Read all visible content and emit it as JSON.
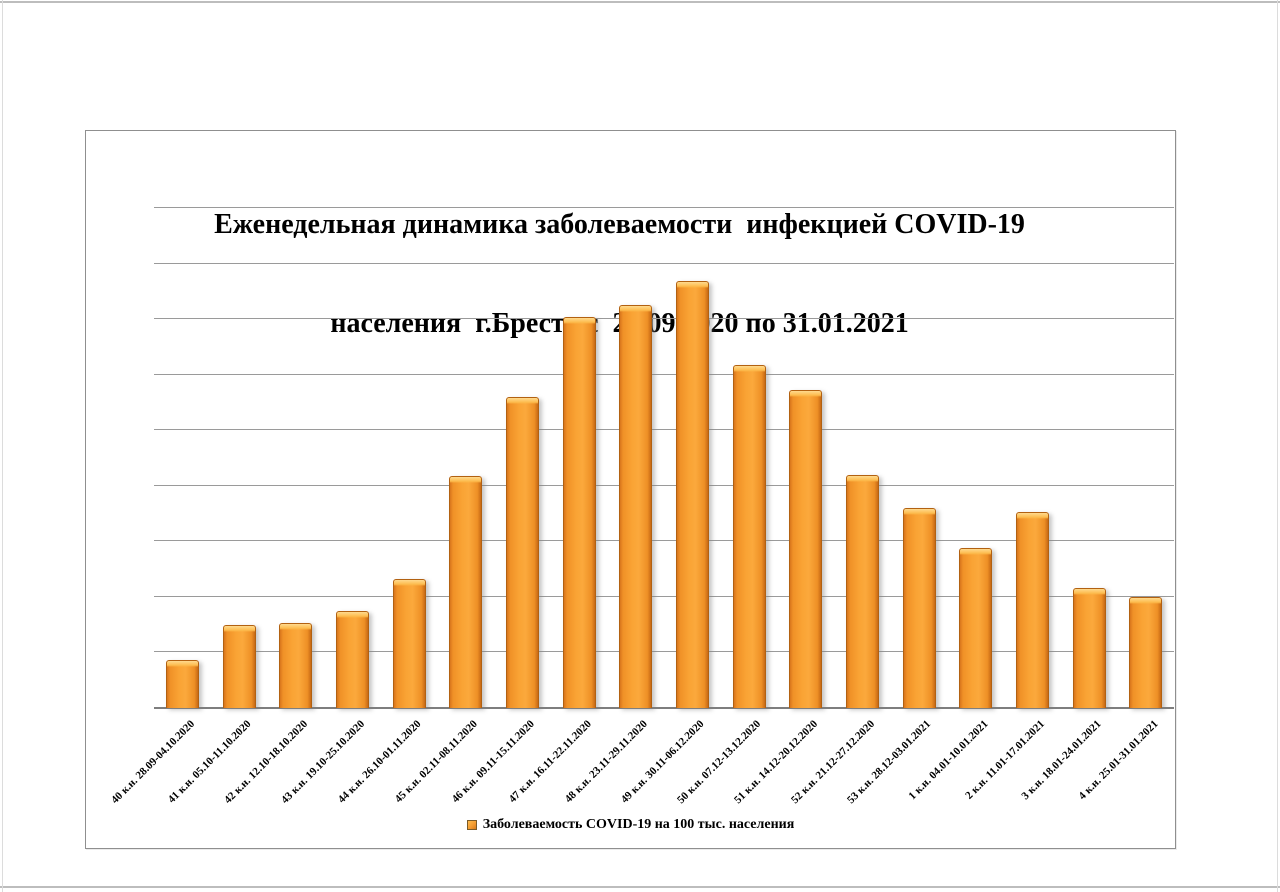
{
  "page": {
    "background": "#ffffff",
    "border_color": "#bdbdbd"
  },
  "chart": {
    "title_line1": "Еженедельная динамика заболеваемости  инфекцией COVID-19",
    "title_line2": "населения  г.Бреста с  28.09.2020 по 31.01.2021",
    "legend": {
      "label": "Заболеваемость COVID-19 на 100 тыс. населения",
      "marker_icon": "orange-square-icon",
      "marker_color": "#f49b30"
    },
    "colors": {
      "bar_fill": "#f79f33",
      "bar_edge": "#c86a15",
      "bar_top_highlight": "#ffd98e",
      "gridline": "#9a9a9a",
      "axis_line": "#7e7e7e",
      "frame_border": "#8f8f8f",
      "text": "#000000"
    }
  },
  "chart_data": {
    "type": "bar",
    "title": "Еженедельная динамика заболеваемости  инфекцией COVID-19 населения  г.Бреста с  28.09.2020 по 31.01.2021",
    "series_name": "Заболеваемость COVID-19 на 100 тыс. населения",
    "categories": [
      "40 к.н. 28.09-04.10.2020",
      "41 к.н. 05.10-11.10.2020",
      "42 к.н. 12.10-18.10.2020",
      "43 к.н. 19.10-25.10.2020",
      "44 к.н. 26.10-01.11.2020",
      "45 к.н. 02.11-08.11.2020",
      "46 к.н. 09.11-15.11.2020",
      "47 к.н. 16.11-22.11.2020",
      "48 к.н. 23.11-29.11.2020",
      "49 к.н. 30.11-06.12.2020",
      "50 к.н. 07.12-13.12.2020",
      "51 к.н. 14.12-20.12.2020",
      "52 к.н. 21.12-27.12.2020",
      "53 к.н. 28.12-03.01.2021",
      "1 к.н. 04.01-10.01.2021",
      "2 к.н. 11.01-17.01.2021",
      "3 к.н. 18.01-24.01.2021",
      "4 к.н. 25.01-31.01.2021"
    ],
    "values": [
      86,
      150,
      153,
      175,
      232,
      417,
      560,
      703,
      726,
      768,
      617,
      572,
      420,
      360,
      288,
      353,
      216,
      200
    ],
    "values_estimated_from_gridlines": true,
    "xlabel": "",
    "ylabel": "",
    "ylim": [
      0,
      900
    ],
    "gridline_step": 100,
    "grid": true,
    "y_axis_tick_labels_visible": false,
    "legend_position": "bottom-center",
    "bar_color": "#f79f33"
  }
}
